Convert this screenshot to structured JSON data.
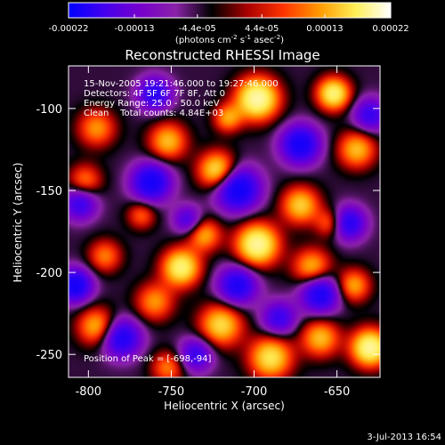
{
  "chart_data": {
    "type": "heatmap",
    "title": "Reconstructed RHESSI Image",
    "xlabel": "Heliocentric X (arcsec)",
    "ylabel": "Heliocentric Y (arcsec)",
    "xlim": [
      -812,
      -624
    ],
    "ylim": [
      -264,
      -74
    ],
    "x_ticks": [
      -800,
      -750,
      -700,
      -650
    ],
    "y_ticks": [
      -100,
      -150,
      -200,
      -250
    ],
    "colorbar": {
      "range": [
        -0.00022,
        0.00022
      ],
      "tick_values": [
        -0.00022,
        -0.00013,
        -4.4e-05,
        4.4e-05,
        0.00013,
        0.00022
      ],
      "tick_labels": [
        "-0.00022",
        "-0.00013",
        "-4.4e-05",
        "4.4e-05",
        "0.00013",
        "0.00022"
      ],
      "units_prefix": "(photons cm",
      "units_exp1": "-2",
      "units_mid": " s",
      "units_exp2": "-1",
      "units_mid2": " asec",
      "units_exp3": "-2",
      "units_suffix": ")",
      "colors": [
        "#0000ff",
        "#4400ee",
        "#7700cc",
        "#8a22a8",
        "#000000",
        "#aa0000",
        "#ff3300",
        "#ff9900",
        "#ffee55",
        "#ffffff"
      ]
    },
    "annotations": {
      "line1": "15-Nov-2005 19:21:46.000 to 19:27:46.000",
      "line2": "Detectors: 4F 5F 6F 7F 8F, Att 0",
      "line3": "Energy Range: 25.0 - 50.0 keV",
      "line4": "Clean    Total counts: 4.84E+03",
      "peak": "Position of Peak = [-698,-94]"
    },
    "blobs": [
      {
        "x": -698,
        "y": -94,
        "v": 1.0,
        "s": 9
      },
      {
        "x": -698,
        "y": -183,
        "v": 0.95,
        "s": 9
      },
      {
        "x": -652,
        "y": -91,
        "v": 0.85,
        "s": 7
      },
      {
        "x": -638,
        "y": -125,
        "v": 0.6,
        "s": 8
      },
      {
        "x": -722,
        "y": -138,
        "v": 0.8,
        "s": 8
      },
      {
        "x": -752,
        "y": -120,
        "v": 0.6,
        "s": 8
      },
      {
        "x": -744,
        "y": -197,
        "v": 0.85,
        "s": 8
      },
      {
        "x": -730,
        "y": -177,
        "v": 0.55,
        "s": 7
      },
      {
        "x": -672,
        "y": -159,
        "v": 0.65,
        "s": 8
      },
      {
        "x": -665,
        "y": -197,
        "v": 0.6,
        "s": 8
      },
      {
        "x": -640,
        "y": -208,
        "v": 0.55,
        "s": 7
      },
      {
        "x": -630,
        "y": -246,
        "v": 0.95,
        "s": 8
      },
      {
        "x": -660,
        "y": -240,
        "v": 0.6,
        "s": 8
      },
      {
        "x": -690,
        "y": -252,
        "v": 0.75,
        "s": 9
      },
      {
        "x": -720,
        "y": -232,
        "v": 0.7,
        "s": 9
      },
      {
        "x": -760,
        "y": -218,
        "v": 0.5,
        "s": 8
      },
      {
        "x": -795,
        "y": -233,
        "v": 0.6,
        "s": 8
      },
      {
        "x": -790,
        "y": -190,
        "v": 0.45,
        "s": 7
      },
      {
        "x": -802,
        "y": -144,
        "v": 0.45,
        "s": 7
      },
      {
        "x": -795,
        "y": -112,
        "v": 0.5,
        "s": 8
      },
      {
        "x": -768,
        "y": -165,
        "v": 0.4,
        "s": 6
      },
      {
        "x": -654,
        "y": -170,
        "v": 0.45,
        "s": 6
      },
      {
        "x": -752,
        "y": -258,
        "v": 0.45,
        "s": 7
      },
      {
        "x": -716,
        "y": -106,
        "v": 0.5,
        "s": 6
      },
      {
        "x": -710,
        "y": -149,
        "v": -1.0,
        "s": 9
      },
      {
        "x": -762,
        "y": -145,
        "v": -0.9,
        "s": 8
      },
      {
        "x": -672,
        "y": -122,
        "v": -0.9,
        "s": 8
      },
      {
        "x": -808,
        "y": -208,
        "v": -0.9,
        "s": 7
      },
      {
        "x": -805,
        "y": -158,
        "v": -0.6,
        "s": 7
      },
      {
        "x": -780,
        "y": -240,
        "v": -0.8,
        "s": 8
      },
      {
        "x": -710,
        "y": -208,
        "v": -0.8,
        "s": 8
      },
      {
        "x": -660,
        "y": -213,
        "v": -0.85,
        "s": 8
      },
      {
        "x": -643,
        "y": -170,
        "v": -0.75,
        "s": 7
      },
      {
        "x": -630,
        "y": -104,
        "v": -0.6,
        "s": 7
      },
      {
        "x": -760,
        "y": -91,
        "v": -0.7,
        "s": 7
      },
      {
        "x": -735,
        "y": -250,
        "v": -0.6,
        "s": 7
      },
      {
        "x": -685,
        "y": -228,
        "v": -0.6,
        "s": 7
      },
      {
        "x": -740,
        "y": -168,
        "v": -0.5,
        "s": 6
      }
    ]
  },
  "footer": {
    "date": "3-Jul-2013 16:54"
  }
}
